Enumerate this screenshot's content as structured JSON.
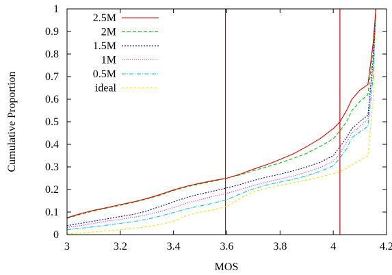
{
  "chart_data": {
    "type": "line",
    "title": "",
    "xlabel": "MOS",
    "ylabel": "Cumulative Proportion",
    "xlim": [
      3,
      4.2
    ],
    "ylim": [
      0,
      1
    ],
    "xticks": [
      "3",
      "3.2",
      "3.4",
      "3.6",
      "3.8",
      "4",
      "4.2"
    ],
    "yticks": [
      "0",
      "0.1",
      "0.2",
      "0.3",
      "0.4",
      "0.5",
      "0.6",
      "0.7",
      "0.8",
      "0.9",
      "1"
    ],
    "grid": false,
    "legend_position": "top-left",
    "vertical_lines": [
      {
        "x": 3.595,
        "color": "#cc0000"
      },
      {
        "x": 4.025,
        "color": "#cc0000"
      }
    ],
    "series": [
      {
        "name": "2.5M",
        "color": "#e00000",
        "dash": "solid",
        "points": [
          [
            3,
            0.075
          ],
          [
            3.05,
            0.093
          ],
          [
            3.1,
            0.108
          ],
          [
            3.15,
            0.12
          ],
          [
            3.2,
            0.133
          ],
          [
            3.25,
            0.145
          ],
          [
            3.3,
            0.16
          ],
          [
            3.35,
            0.178
          ],
          [
            3.4,
            0.198
          ],
          [
            3.45,
            0.215
          ],
          [
            3.5,
            0.228
          ],
          [
            3.55,
            0.24
          ],
          [
            3.6,
            0.25
          ],
          [
            3.65,
            0.268
          ],
          [
            3.7,
            0.29
          ],
          [
            3.75,
            0.31
          ],
          [
            3.8,
            0.333
          ],
          [
            3.85,
            0.358
          ],
          [
            3.9,
            0.39
          ],
          [
            3.95,
            0.425
          ],
          [
            4.0,
            0.47
          ],
          [
            4.025,
            0.5
          ],
          [
            4.05,
            0.55
          ],
          [
            4.07,
            0.6
          ],
          [
            4.1,
            0.64
          ],
          [
            4.13,
            0.665
          ],
          [
            4.15,
            0.85
          ],
          [
            4.16,
            1.0
          ]
        ]
      },
      {
        "name": "2M",
        "color": "#00c000",
        "dash": "5,3",
        "points": [
          [
            3,
            0.072
          ],
          [
            3.05,
            0.09
          ],
          [
            3.1,
            0.105
          ],
          [
            3.15,
            0.118
          ],
          [
            3.2,
            0.13
          ],
          [
            3.25,
            0.143
          ],
          [
            3.3,
            0.158
          ],
          [
            3.35,
            0.175
          ],
          [
            3.4,
            0.195
          ],
          [
            3.45,
            0.212
          ],
          [
            3.5,
            0.225
          ],
          [
            3.55,
            0.237
          ],
          [
            3.6,
            0.25
          ],
          [
            3.65,
            0.265
          ],
          [
            3.7,
            0.283
          ],
          [
            3.75,
            0.3
          ],
          [
            3.8,
            0.318
          ],
          [
            3.85,
            0.338
          ],
          [
            3.9,
            0.36
          ],
          [
            3.95,
            0.39
          ],
          [
            4.0,
            0.425
          ],
          [
            4.025,
            0.46
          ],
          [
            4.05,
            0.5
          ],
          [
            4.07,
            0.55
          ],
          [
            4.1,
            0.59
          ],
          [
            4.13,
            0.62
          ],
          [
            4.15,
            0.82
          ],
          [
            4.16,
            1.0
          ]
        ]
      },
      {
        "name": "1.5M",
        "color": "#0000a0",
        "dash": "2,2",
        "points": [
          [
            3,
            0.04
          ],
          [
            3.05,
            0.05
          ],
          [
            3.1,
            0.06
          ],
          [
            3.15,
            0.07
          ],
          [
            3.2,
            0.08
          ],
          [
            3.25,
            0.09
          ],
          [
            3.3,
            0.105
          ],
          [
            3.35,
            0.125
          ],
          [
            3.4,
            0.145
          ],
          [
            3.45,
            0.165
          ],
          [
            3.5,
            0.18
          ],
          [
            3.55,
            0.193
          ],
          [
            3.6,
            0.207
          ],
          [
            3.65,
            0.222
          ],
          [
            3.7,
            0.24
          ],
          [
            3.75,
            0.255
          ],
          [
            3.8,
            0.268
          ],
          [
            3.85,
            0.283
          ],
          [
            3.9,
            0.3
          ],
          [
            3.95,
            0.32
          ],
          [
            4.0,
            0.35
          ],
          [
            4.025,
            0.39
          ],
          [
            4.05,
            0.43
          ],
          [
            4.07,
            0.47
          ],
          [
            4.1,
            0.5
          ],
          [
            4.13,
            0.53
          ],
          [
            4.15,
            0.78
          ],
          [
            4.16,
            1.0
          ]
        ]
      },
      {
        "name": "1M",
        "color": "#e000e0",
        "dash": "1,2",
        "points": [
          [
            3,
            0.032
          ],
          [
            3.05,
            0.04
          ],
          [
            3.1,
            0.05
          ],
          [
            3.15,
            0.06
          ],
          [
            3.2,
            0.068
          ],
          [
            3.25,
            0.077
          ],
          [
            3.3,
            0.088
          ],
          [
            3.35,
            0.102
          ],
          [
            3.4,
            0.12
          ],
          [
            3.45,
            0.14
          ],
          [
            3.5,
            0.155
          ],
          [
            3.55,
            0.17
          ],
          [
            3.6,
            0.183
          ],
          [
            3.65,
            0.2
          ],
          [
            3.7,
            0.218
          ],
          [
            3.75,
            0.233
          ],
          [
            3.8,
            0.247
          ],
          [
            3.85,
            0.26
          ],
          [
            3.9,
            0.277
          ],
          [
            3.95,
            0.297
          ],
          [
            4.0,
            0.325
          ],
          [
            4.025,
            0.36
          ],
          [
            4.05,
            0.41
          ],
          [
            4.07,
            0.45
          ],
          [
            4.1,
            0.48
          ],
          [
            4.13,
            0.51
          ],
          [
            4.15,
            0.75
          ],
          [
            4.16,
            1.0
          ]
        ]
      },
      {
        "name": "0.5M",
        "color": "#00c8d8",
        "dash": "6,2,1,2",
        "points": [
          [
            3,
            0.022
          ],
          [
            3.05,
            0.028
          ],
          [
            3.1,
            0.035
          ],
          [
            3.15,
            0.042
          ],
          [
            3.2,
            0.05
          ],
          [
            3.25,
            0.058
          ],
          [
            3.3,
            0.068
          ],
          [
            3.35,
            0.082
          ],
          [
            3.4,
            0.098
          ],
          [
            3.45,
            0.115
          ],
          [
            3.5,
            0.127
          ],
          [
            3.55,
            0.14
          ],
          [
            3.6,
            0.155
          ],
          [
            3.65,
            0.18
          ],
          [
            3.7,
            0.203
          ],
          [
            3.75,
            0.22
          ],
          [
            3.8,
            0.233
          ],
          [
            3.85,
            0.245
          ],
          [
            3.9,
            0.26
          ],
          [
            3.95,
            0.28
          ],
          [
            4.0,
            0.305
          ],
          [
            4.025,
            0.34
          ],
          [
            4.05,
            0.38
          ],
          [
            4.07,
            0.43
          ],
          [
            4.1,
            0.455
          ],
          [
            4.13,
            0.48
          ],
          [
            4.15,
            0.7
          ],
          [
            4.16,
            1.0
          ]
        ]
      },
      {
        "name": "ideal",
        "color": "#e8e000",
        "dash": "3,3",
        "points": [
          [
            3,
            0.003
          ],
          [
            3.05,
            0.007
          ],
          [
            3.1,
            0.012
          ],
          [
            3.15,
            0.017
          ],
          [
            3.2,
            0.022
          ],
          [
            3.25,
            0.028
          ],
          [
            3.3,
            0.035
          ],
          [
            3.35,
            0.045
          ],
          [
            3.4,
            0.06
          ],
          [
            3.45,
            0.085
          ],
          [
            3.5,
            0.1
          ],
          [
            3.55,
            0.11
          ],
          [
            3.6,
            0.125
          ],
          [
            3.65,
            0.16
          ],
          [
            3.7,
            0.19
          ],
          [
            3.75,
            0.205
          ],
          [
            3.8,
            0.218
          ],
          [
            3.85,
            0.23
          ],
          [
            3.9,
            0.242
          ],
          [
            3.95,
            0.255
          ],
          [
            4.0,
            0.27
          ],
          [
            4.025,
            0.28
          ],
          [
            4.05,
            0.295
          ],
          [
            4.07,
            0.31
          ],
          [
            4.1,
            0.33
          ],
          [
            4.13,
            0.35
          ],
          [
            4.15,
            0.6
          ],
          [
            4.16,
            1.0
          ]
        ]
      }
    ]
  }
}
